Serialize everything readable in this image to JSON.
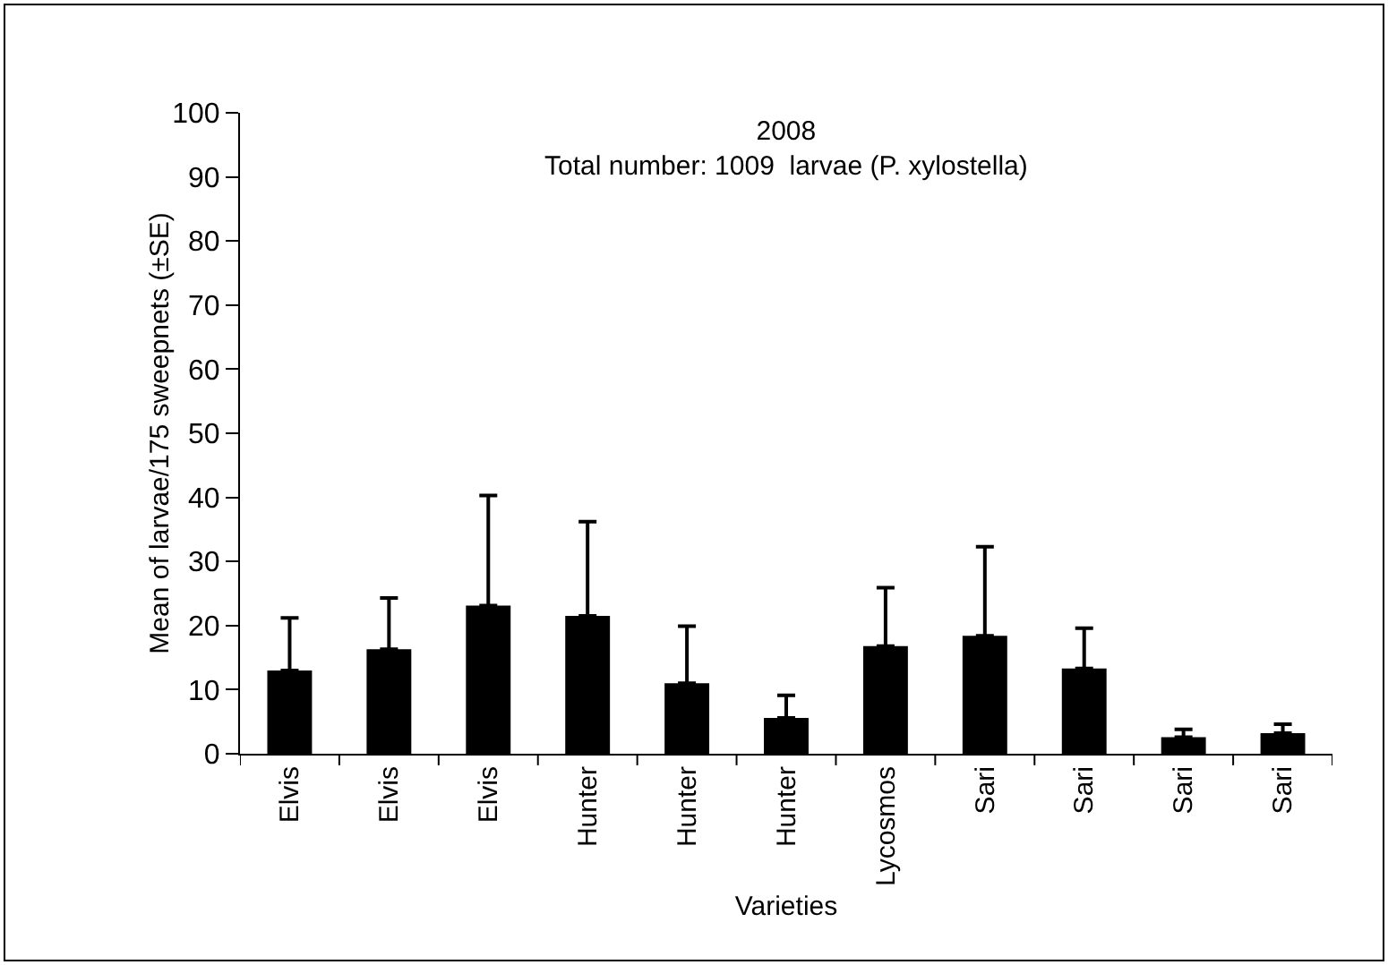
{
  "chart_data": {
    "type": "bar",
    "title": "2008",
    "subtitle": "Total number: 1009  larvae (P. xylostella)",
    "xlabel": "Varieties",
    "ylabel": "Mean of larvae/175 sweepnets (±SE)",
    "categories": [
      "Elvis",
      "Elvis",
      "Elvis",
      "Hunter",
      "Hunter",
      "Hunter",
      "Lycosmos",
      "Sari",
      "Sari",
      "Sari",
      "Sari"
    ],
    "values": [
      13,
      16.3,
      23.1,
      21.5,
      11,
      5.6,
      16.8,
      18.4,
      13.3,
      2.6,
      3.2
    ],
    "errors": [
      [
        13,
        21.2
      ],
      [
        16.3,
        24.3
      ],
      [
        23.1,
        40.3
      ],
      [
        21.5,
        36.2
      ],
      [
        11,
        19.9
      ],
      [
        5.6,
        9.1
      ],
      [
        16.8,
        25.9
      ],
      [
        18.4,
        32.3
      ],
      [
        13.3,
        19.6
      ],
      [
        2.6,
        3.8
      ],
      [
        3.2,
        4.6
      ]
    ],
    "color": "#000000",
    "ylim": [
      0,
      100
    ],
    "yticks": [
      0,
      10,
      20,
      30,
      40,
      50,
      60,
      70,
      80,
      90,
      100
    ]
  }
}
